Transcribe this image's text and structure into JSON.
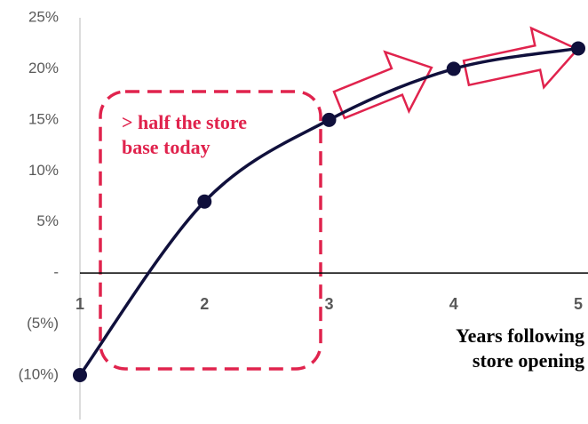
{
  "chart_data": {
    "type": "line",
    "x": [
      1,
      2,
      3,
      4,
      5
    ],
    "series": [
      {
        "color": "#10103c",
        "values": [
          -10,
          7,
          15,
          20,
          22
        ]
      }
    ],
    "xlim": [
      1,
      5
    ],
    "xticks": [
      1,
      2,
      3,
      4,
      5
    ],
    "ylim": [
      -10,
      25
    ],
    "yticks": [
      {
        "value": -10,
        "label": "(10%)"
      },
      {
        "value": -5,
        "label": "(5%)"
      },
      {
        "value": 0,
        "label": "-"
      },
      {
        "value": 5,
        "label": "5%"
      },
      {
        "value": 10,
        "label": "10%"
      },
      {
        "value": 15,
        "label": "15%"
      },
      {
        "value": 20,
        "label": "20%"
      },
      {
        "value": 25,
        "label": "25%"
      }
    ],
    "annotation": [
      "> half the store",
      "base today"
    ],
    "x_label": [
      "Years following",
      "store opening"
    ],
    "accent_color": "#e0234d"
  }
}
